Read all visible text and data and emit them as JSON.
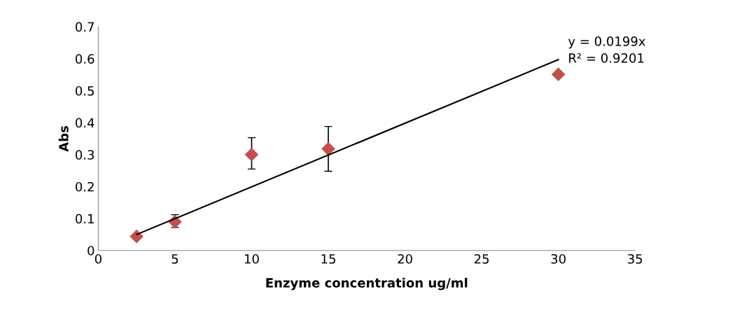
{
  "chart_data": {
    "type": "scatter",
    "xlabel": "Enzyme concentration ug/ml",
    "ylabel": "Abs",
    "series": [
      {
        "color": "#c0504d",
        "marker": "diamond",
        "x": [
          2.5,
          5,
          10,
          15,
          30
        ],
        "values": [
          0.044,
          0.09,
          0.3,
          0.318,
          0.551
        ],
        "errors": [
          null,
          [
            0.072,
            0.112
          ],
          [
            0.255,
            0.353
          ],
          [
            0.248,
            0.388
          ],
          null
        ]
      },
      {
        "type": "line",
        "color": "#000000",
        "marker": "none",
        "x": [
          2.5,
          30
        ],
        "values": [
          0.05,
          0.597
        ]
      }
    ],
    "annotations": [
      "y = 0.0199x",
      "R² = 0.9201"
    ],
    "xlim": [
      0,
      35
    ],
    "xticks": [
      0,
      5,
      10,
      15,
      20,
      25,
      30,
      35
    ],
    "ylim": [
      0,
      0.7
    ],
    "yticks": [
      0,
      0.1,
      0.2,
      0.3,
      0.4,
      0.5,
      0.6,
      0.7
    ],
    "grid": false,
    "legend": false
  }
}
